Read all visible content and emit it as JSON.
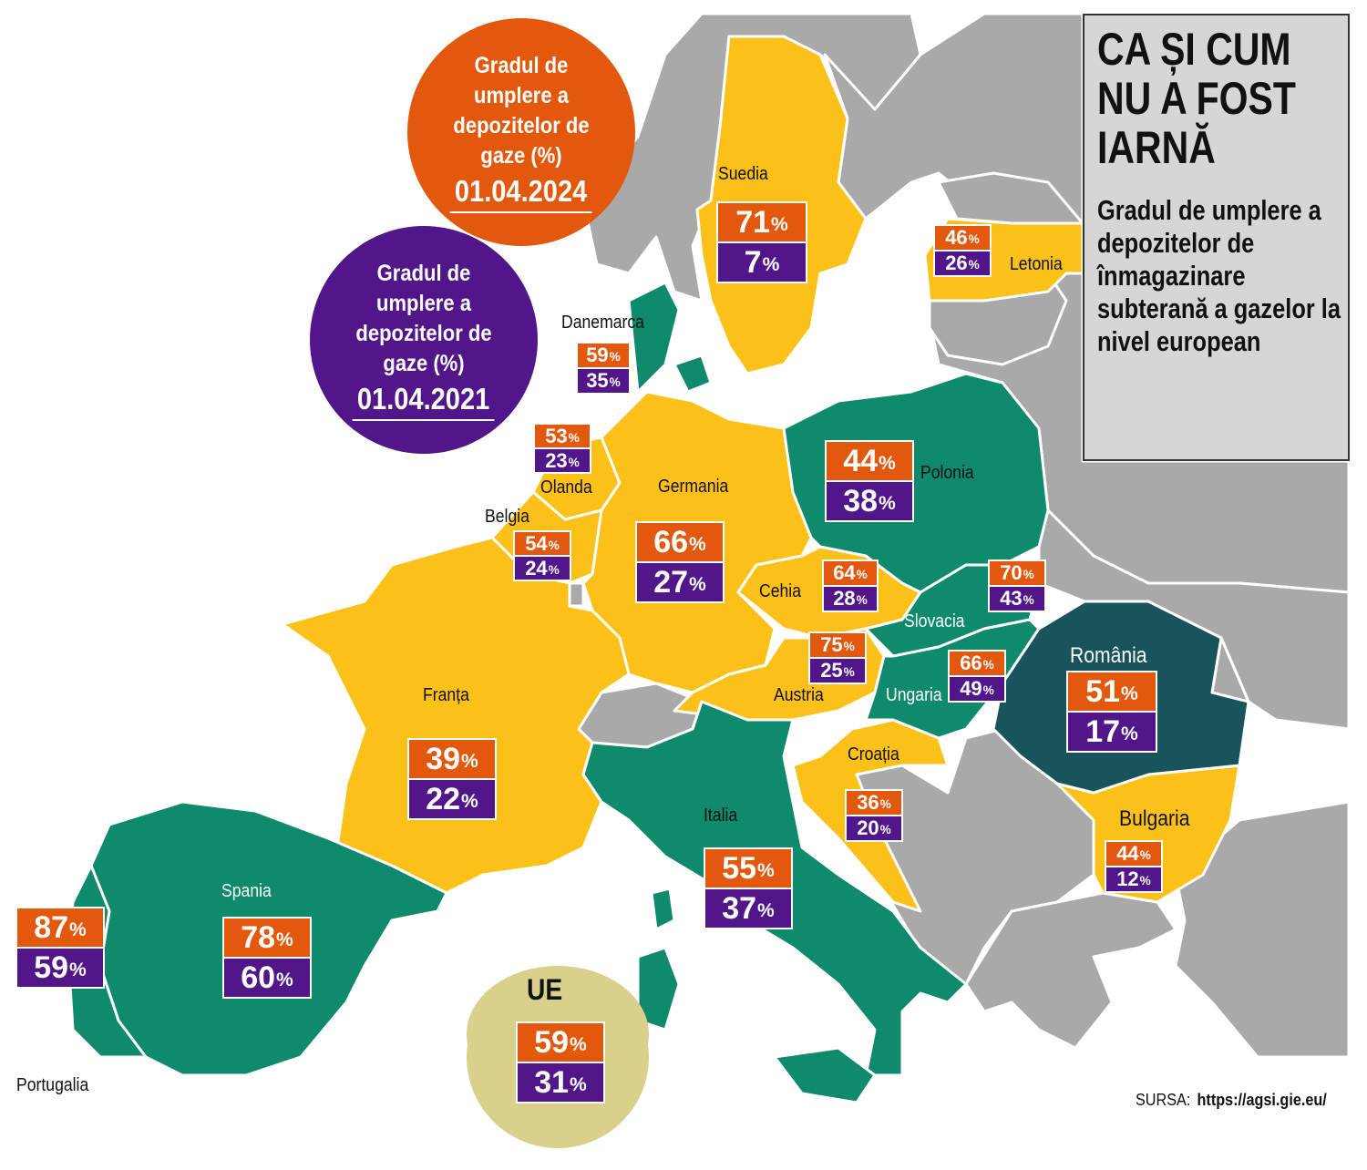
{
  "title": "CA ȘI CUM NU A FOST IARNĂ",
  "subtitle": "Gradul de umplere a depozitelor de înmagazinare subterană a gazelor la nivel european",
  "source": {
    "label": "SURSA:",
    "url": "https://agsi.gie.eu/"
  },
  "colors": {
    "orange_2024": "#e2580d",
    "purple_2021": "#51168a",
    "yellow": "#fbc119",
    "green": "#0f8a6c",
    "dark_teal": "#19545c",
    "grey": "#a9a9a9",
    "eu_circle": "#d9d08c"
  },
  "legend": {
    "circle_2024": {
      "label": "Gradul de umplere a depozitelor de gaze (%)",
      "date": "01.04.2024"
    },
    "circle_2021": {
      "label": "Gradul de umplere a depozitelor de gaze (%)",
      "date": "01.04.2021"
    }
  },
  "countries": [
    {
      "name": "Suedia",
      "v2024": "71",
      "v2021": "7"
    },
    {
      "name": "Letonia",
      "v2024": "46",
      "v2021": "26"
    },
    {
      "name": "Danemarca",
      "v2024": "59",
      "v2021": "35"
    },
    {
      "name": "Olanda",
      "v2024": "53",
      "v2021": "23"
    },
    {
      "name": "Germania",
      "v2024": "66",
      "v2021": "27"
    },
    {
      "name": "Polonia",
      "v2024": "44",
      "v2021": "38"
    },
    {
      "name": "Belgia",
      "v2024": "54",
      "v2021": "24"
    },
    {
      "name": "Cehia",
      "v2024": "64",
      "v2021": "28"
    },
    {
      "name": "Slovacia",
      "v2024": "70",
      "v2021": "43"
    },
    {
      "name": "Austria",
      "v2024": "75",
      "v2021": "25"
    },
    {
      "name": "Ungaria",
      "v2024": "66",
      "v2021": "49"
    },
    {
      "name": "România",
      "v2024": "51",
      "v2021": "17"
    },
    {
      "name": "Franța",
      "v2024": "39",
      "v2021": "22"
    },
    {
      "name": "Croația",
      "v2024": "36",
      "v2021": "20"
    },
    {
      "name": "Italia",
      "v2024": "55",
      "v2021": "37"
    },
    {
      "name": "Bulgaria",
      "v2024": "44",
      "v2021": "12"
    },
    {
      "name": "Spania",
      "v2024": "78",
      "v2021": "60"
    },
    {
      "name": "Portugalia",
      "v2024": "87",
      "v2021": "59"
    },
    {
      "name": "UE",
      "v2024": "59",
      "v2021": "31"
    }
  ],
  "percent_sign": "%"
}
